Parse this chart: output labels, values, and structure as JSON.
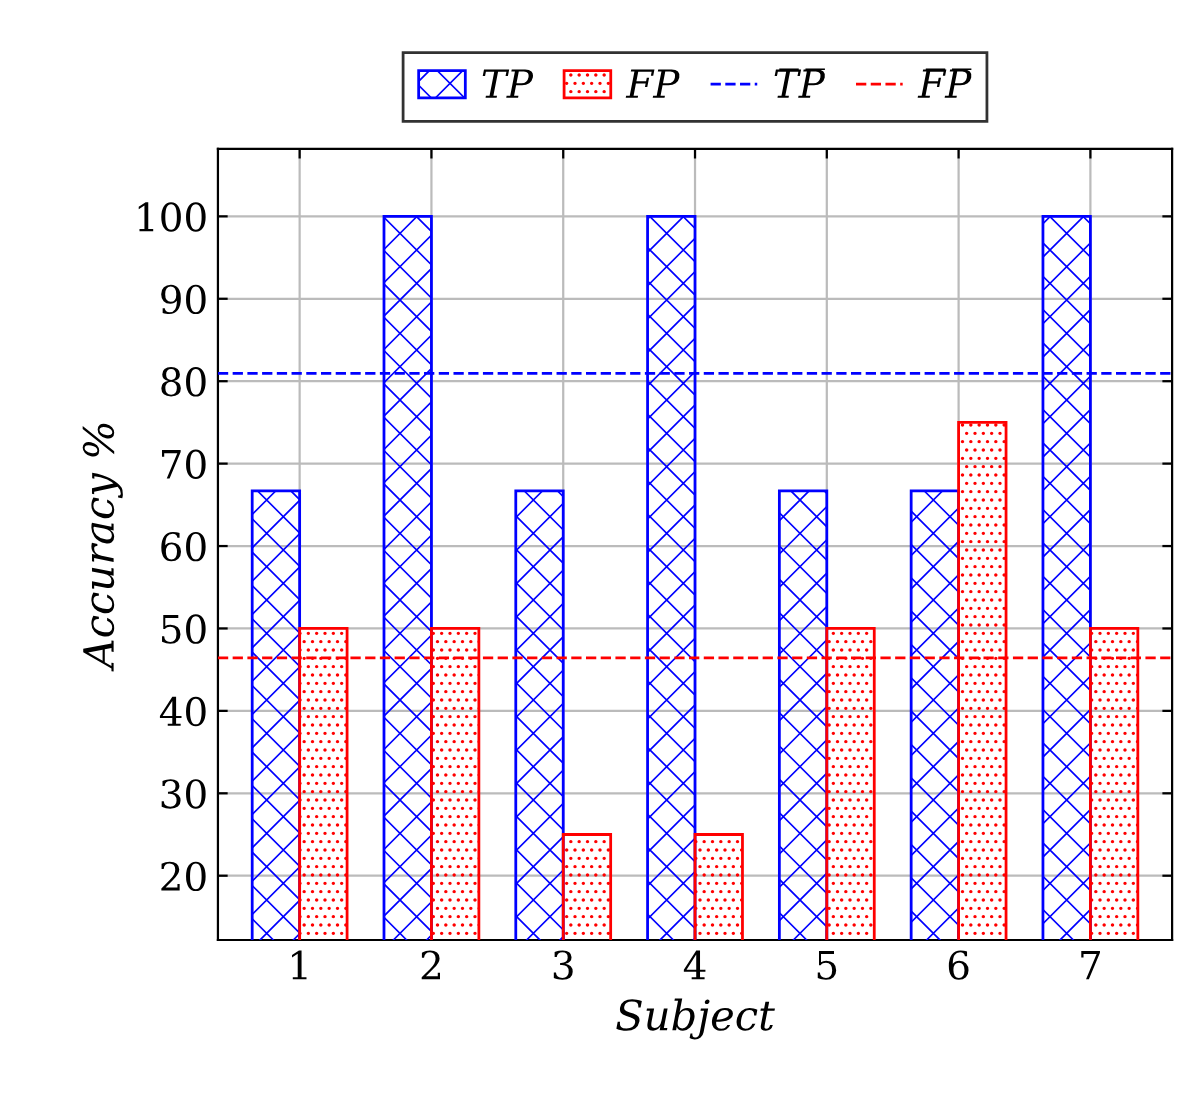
{
  "chart_data": {
    "type": "bar",
    "xlabel": "Subject",
    "ylabel": "Accuracy %",
    "categories": [
      "1",
      "2",
      "3",
      "4",
      "5",
      "6",
      "7"
    ],
    "series": [
      {
        "name": "TP",
        "color": "#0000ff",
        "values": [
          66.7,
          100,
          66.7,
          100,
          66.7,
          66.7,
          100
        ]
      },
      {
        "name": "FP",
        "color": "#ff0000",
        "values": [
          50,
          50,
          25,
          25,
          50,
          75,
          50
        ]
      }
    ],
    "ref_lines": [
      {
        "axis": "y",
        "value": 80.95,
        "label": "T̅P̅",
        "color": "#0000ff",
        "line_style": "dashed"
      },
      {
        "axis": "y",
        "value": 46.43,
        "label": "F̅P̅",
        "color": "#ff0000",
        "line_style": "dashed"
      }
    ],
    "ylim": [
      12.2,
      108.2
    ],
    "yticks": [
      20,
      30,
      40,
      50,
      60,
      70,
      80,
      90,
      100
    ],
    "grid": true,
    "legend": "top"
  }
}
